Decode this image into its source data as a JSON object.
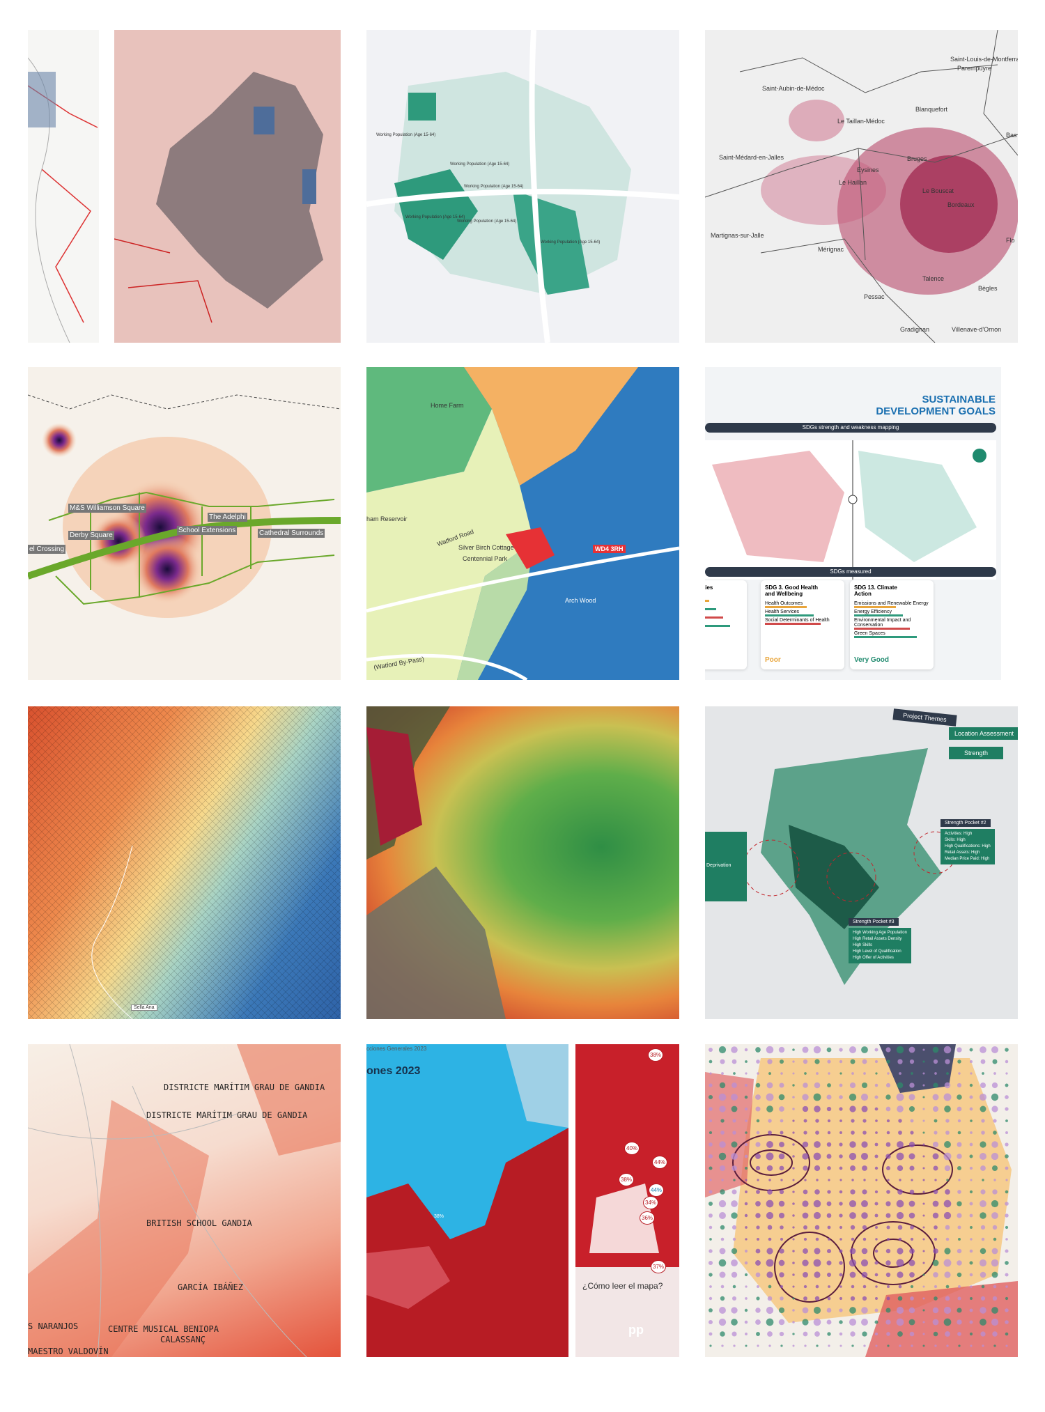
{
  "teal_map": {
    "labels": [
      "Working Population (Age 15-64)",
      "Working Population (Age 15-64)",
      "Working Population (Age 15-64)",
      "Working Population (Age 15-64)",
      "Working Population (Age 15-64)",
      "Working Population (Age 15-64)"
    ]
  },
  "bordeaux_map": {
    "labels": [
      "Saint-Louis-de-Montferrand",
      "Parempuyre",
      "Saint-Aubin-de-Médoc",
      "Le Taillan-Médoc",
      "Blanquefort",
      "Saint-Médard-en-Jalles",
      "Eysines",
      "Bruges",
      "Le Haillan",
      "Le Bouscat",
      "Bordeaux",
      "Martignas-sur-Jalle",
      "Mérignac",
      "Talence",
      "Bègles",
      "Pessac",
      "Gradignan",
      "Villenave-d'Ornon",
      "Bas",
      "Flo"
    ]
  },
  "heat_map": {
    "labels": [
      "M&S Williamson Square",
      "Derby Square",
      "School Extensions",
      "The Adelphi",
      "Cathedral Surrounds",
      "el Crossing"
    ]
  },
  "watford_map": {
    "labels": [
      "Home Farm",
      "ham Reservoir",
      "Watford Road",
      "Silver Birch Cottage",
      "Centennial Park",
      "WD4 3RH",
      "Arch Wood",
      "(Watford By-Pass)"
    ]
  },
  "sdg_panel": {
    "title": "SUSTAINABLE DEVELOPMENT GOALS",
    "mapping": "SDGs strength and weakness mapping",
    "measured": "SDGs measured",
    "cards": [
      {
        "title": "inable Cities ities",
        "items": [
          "cial Factors",
          "ces",
          "Transport",
          "an Dynamics"
        ],
        "rating": "d"
      },
      {
        "title": "SDG 3. Good Health and Wellbeing",
        "items": [
          "Health Outcomes",
          "Health Services",
          "Social Determinants of Health"
        ],
        "rating": "Poor"
      },
      {
        "title": "SDG 13. Climate Action",
        "items": [
          "Emissions and Renewable Energy",
          "Energy Efficiency",
          "Environmental Impact and Conservation",
          "Green Spaces"
        ],
        "rating": "Very Good"
      }
    ]
  },
  "grid_map": {
    "labels": [
      "Sella Ana"
    ]
  },
  "themes_map": {
    "labels": [
      "Project Themes",
      "Location Assessment",
      "Strength",
      "Strength Pocket #2",
      "Strength Pocket #3",
      "Deprivation"
    ],
    "pocket2": [
      "Activities: High",
      "Skills: High",
      "High Qualifications: High",
      "Retail Assets: High",
      "Median Price Paid: High"
    ],
    "pocket3": [
      "High Working Age Population",
      "High Retail Assets Density",
      "High Skills",
      "High Level of Qualification",
      "High Offer of Activities"
    ]
  },
  "gandia_map": {
    "labels": [
      "DISTRICTE MARÍTIM GRAU DE GANDIA",
      "DISTRICTE MARÍTIM GRAU DE GANDIA",
      "BRITISH SCHOOL GANDIA",
      "GARCÍA IBÁÑEZ",
      "S NARANJOS",
      "CENTRE MUSICAL BENIOPA",
      "CALASSANÇ",
      "MAESTRO VALDOVÍN"
    ]
  },
  "election_map": {
    "labels": [
      "cciones Generales 2023",
      "ones 2023",
      "¿Cómo leer el mapa?",
      "38%",
      "40%",
      "44%",
      "38%",
      "44%",
      "34%",
      "36%",
      "37%",
      "38%",
      "pp"
    ]
  }
}
